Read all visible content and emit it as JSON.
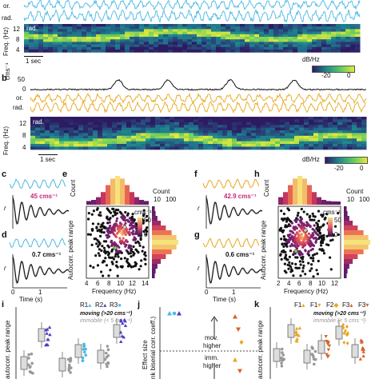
{
  "colors": {
    "cyan": "#4bb8e2",
    "gold": "#e7a81e",
    "black": "#111111",
    "orange_rust": "#d8632a",
    "heat_low": "#2b124c",
    "heat_high": "#f6e27a",
    "spec_low": "#2d1b62",
    "spec_high": "#e4ea39",
    "green_dot": "#7dcf4c"
  },
  "panel_a": {
    "trace_labels": [
      "or.",
      "rad."
    ],
    "freq_label": "Freq. (Hz)",
    "spec_tag": "rad.",
    "freq_ticks": [
      "12",
      "8",
      "4"
    ],
    "scalebar": "1 sec",
    "colorbar_label": "dB/Hz",
    "colorbar_ticks": [
      "-20",
      "0"
    ]
  },
  "panel_b": {
    "letter": "b",
    "speed_unit": "cms⁻¹",
    "speed_ticks": [
      "50",
      "0"
    ],
    "trace_labels": [
      "or.",
      "rad."
    ],
    "freq_label": "Freq. (Hz)",
    "spec_tag": "rad.",
    "freq_ticks": [
      "12",
      "8",
      "4"
    ],
    "scalebar": "1 sec",
    "colorbar_label": "dB/Hz",
    "colorbar_ticks": [
      "-20",
      "0"
    ]
  },
  "panel_c": {
    "letter": "c",
    "speed": "45 cms⁻¹"
  },
  "panel_d": {
    "letter": "d",
    "speed": "0.7 cms⁻¹",
    "xlabel": "Time (s)",
    "xticks": [
      "0",
      "1"
    ],
    "ylabel": "r"
  },
  "panel_e": {
    "letter": "e",
    "count_label": "Count",
    "count_ticks": [
      "10",
      "100"
    ],
    "marg_y": "Count",
    "marg_ticks": [
      "10 100"
    ],
    "xlabel": "Frequency (Hz)",
    "xticks": [
      "4",
      "6",
      "8",
      "10",
      "12",
      "14"
    ],
    "ylabel": "Autocorr. peak range",
    "cbar_unit": "cms⁻¹",
    "cbar_ticks": [
      "50",
      "0"
    ]
  },
  "panel_f": {
    "letter": "f",
    "speed": "42.9 cms⁻¹"
  },
  "panel_g": {
    "letter": "g",
    "speed": "0.6 cms⁻¹",
    "xlabel": "Time (s)",
    "xticks": [
      "0",
      "1"
    ],
    "ylabel": "r"
  },
  "panel_h": {
    "letter": "h",
    "count_label": "Count",
    "count_ticks": [
      "10",
      "100"
    ],
    "xlabel": "Frequency (Hz)",
    "xticks": [
      "2",
      "4",
      "6",
      "8",
      "10",
      "12"
    ],
    "ylabel": "Autocorr. peak range",
    "cbar_unit": "cms⁻¹",
    "cbar_ticks": [
      "50",
      "0"
    ]
  },
  "panel_i": {
    "letter": "i",
    "legend": [
      "R1",
      "R2",
      "R3"
    ],
    "moving": "moving (>20 cms⁻¹)",
    "immobile": "immobile (< 5 cms⁻¹)",
    "ylabel": "autocorr. peak range"
  },
  "panel_j": {
    "letter": "j",
    "ylabel1": "Effect size",
    "ylabel2": "nk biserial corr. coeff.)",
    "mov": [
      "mov.",
      "higher"
    ],
    "imm": [
      "imm.",
      "higher"
    ]
  },
  "panel_k": {
    "letter": "k",
    "legend": [
      "F1",
      "F1",
      "F2",
      "F3",
      "F3"
    ],
    "moving": "moving (>20 cms⁻¹)",
    "immobile": "immobile (< 5 cms⁻¹)",
    "ylabel": "autocorr. peak range"
  }
}
